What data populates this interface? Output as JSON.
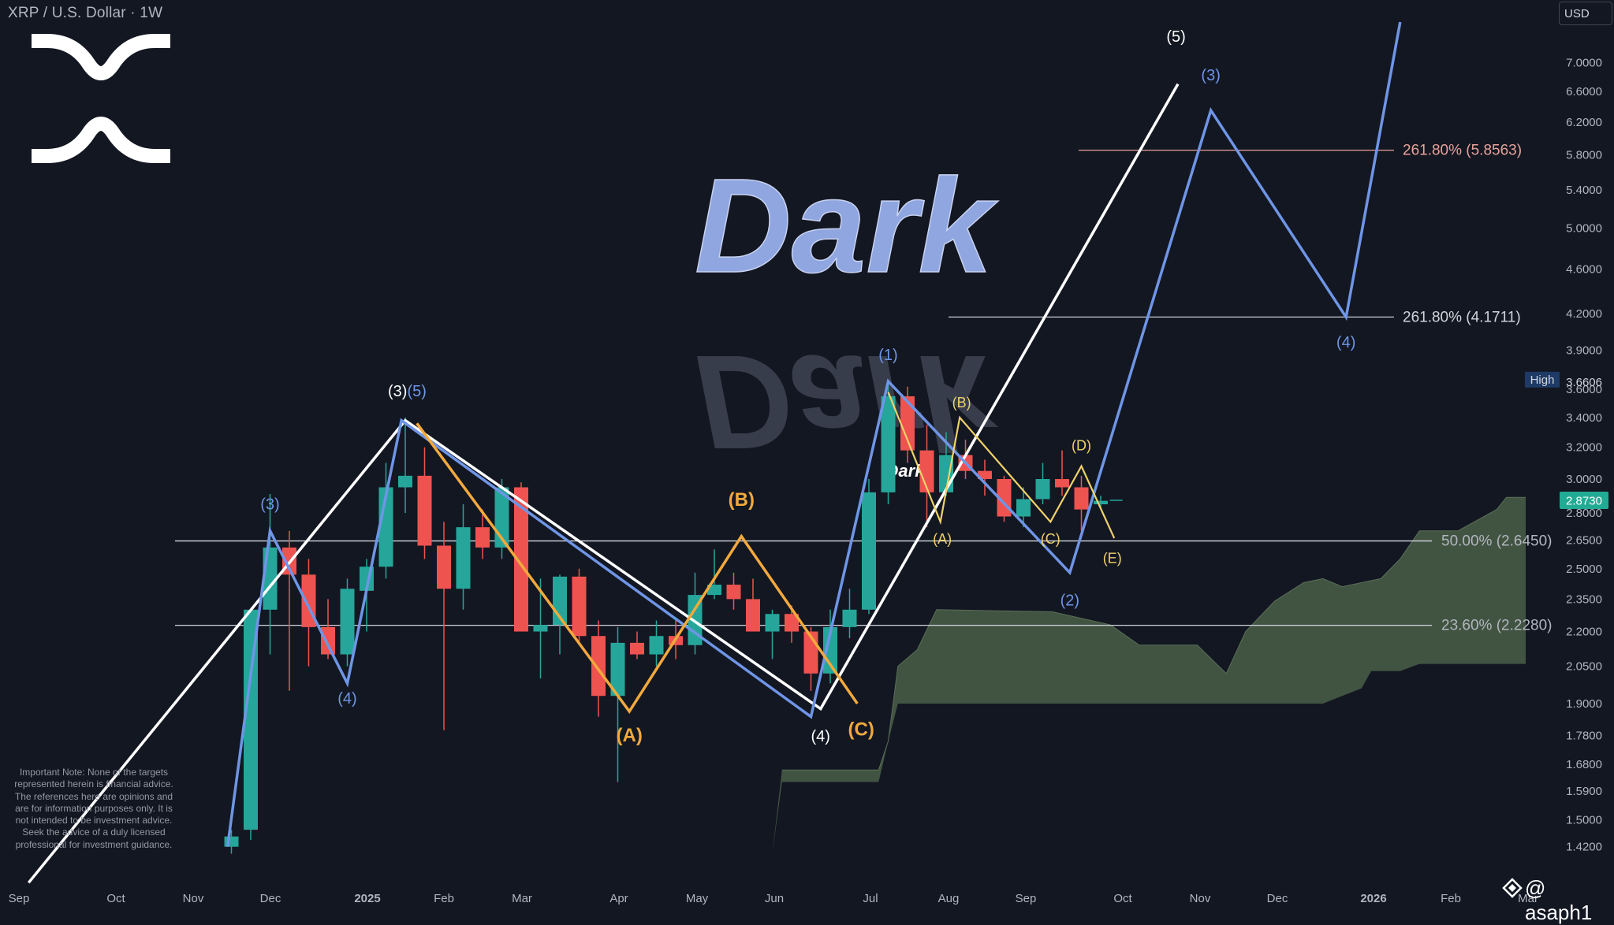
{
  "header": {
    "title": "XRP / U.S. Dollar · 1W",
    "currency": "USD"
  },
  "watermark": {
    "text": "Dark",
    "small_text": "Dark",
    "logo_icon": "xrp-logo-icon"
  },
  "disclaimer": "Important Note: None of the targets represented herein is financial advice. The references here are opinions and are for information purposes only. It is not intended to be investment advice. Seek the advice of a duly licensed professional for investment guidance.",
  "author": {
    "handle": "@ asaph1",
    "icon": "tradingview-diamond-icon"
  },
  "colors": {
    "background": "#131722",
    "bull": "#26a69a",
    "bear": "#ef5350",
    "wave_white": "#ffffff",
    "wave_blue": "#6f95e6",
    "wave_orange": "#f3a93c",
    "wave_yellow": "#f0d26a",
    "cloud": "#4a5f48",
    "fib_orange": "#e8a29a"
  },
  "chart_data": {
    "type": "candlestick",
    "symbol": "XRP / U.S. Dollar",
    "interval": "1W",
    "scale": "log",
    "y_axis_ticks": [
      "1.4200",
      "1.5000",
      "1.5900",
      "1.6800",
      "1.7800",
      "1.9000",
      "2.0500",
      "2.2000",
      "2.3500",
      "2.5000",
      "2.6500",
      "2.8000",
      "3.0000",
      "3.2000",
      "3.4000",
      "3.6000",
      "3.9000",
      "4.2000",
      "4.6000",
      "5.0000",
      "5.4000",
      "5.8000",
      "6.2000",
      "6.6000",
      "7.0000"
    ],
    "x_axis_labels": [
      "Sep",
      "Oct",
      "Nov",
      "Dec",
      "2025",
      "Feb",
      "Mar",
      "Apr",
      "May",
      "Jun",
      "Jul",
      "Aug",
      "Sep",
      "Oct",
      "Nov",
      "Dec",
      "2026",
      "Feb",
      "Mar"
    ],
    "last_price": {
      "label": "2.8730",
      "value": 2.873
    },
    "high_marker": {
      "label": "High",
      "value_label": "3.6606",
      "value": 3.6606
    },
    "fib_levels": [
      {
        "label": "261.80% (5.8563)",
        "value": 5.8563
      },
      {
        "label": "261.80% (4.1711)",
        "value": 4.1711
      },
      {
        "label": "50.00% (2.6450)",
        "value": 2.645
      },
      {
        "label": "23.60% (2.2280)",
        "value": 2.228
      }
    ],
    "candles": [
      {
        "w": 11.0,
        "o": 1.42,
        "h": 1.47,
        "l": 1.4,
        "c": 1.45
      },
      {
        "w": 12.0,
        "o": 1.47,
        "h": 2.3,
        "l": 1.44,
        "c": 2.3
      },
      {
        "w": 13.0,
        "o": 2.3,
        "h": 2.91,
        "l": 2.1,
        "c": 2.61
      },
      {
        "w": 14.0,
        "o": 2.61,
        "h": 2.7,
        "l": 1.95,
        "c": 2.47
      },
      {
        "w": 15.0,
        "o": 2.47,
        "h": 2.55,
        "l": 2.05,
        "c": 2.22
      },
      {
        "w": 16.0,
        "o": 2.22,
        "h": 2.35,
        "l": 2.08,
        "c": 2.1
      },
      {
        "w": 17.0,
        "o": 2.1,
        "h": 2.45,
        "l": 2.05,
        "c": 2.4
      },
      {
        "w": 18.0,
        "o": 2.39,
        "h": 2.55,
        "l": 2.2,
        "c": 2.51
      },
      {
        "w": 19.0,
        "o": 2.51,
        "h": 3.1,
        "l": 2.45,
        "c": 2.95
      },
      {
        "w": 20.0,
        "o": 2.95,
        "h": 3.4,
        "l": 2.8,
        "c": 3.02
      },
      {
        "w": 21.0,
        "o": 3.02,
        "h": 3.2,
        "l": 2.55,
        "c": 2.62
      },
      {
        "w": 22.0,
        "o": 2.62,
        "h": 2.75,
        "l": 1.8,
        "c": 2.4
      },
      {
        "w": 23.0,
        "o": 2.4,
        "h": 2.85,
        "l": 2.3,
        "c": 2.72
      },
      {
        "w": 24.0,
        "o": 2.72,
        "h": 2.82,
        "l": 2.55,
        "c": 2.61
      },
      {
        "w": 25.0,
        "o": 2.61,
        "h": 3.0,
        "l": 2.55,
        "c": 2.95
      },
      {
        "w": 26.0,
        "o": 2.95,
        "h": 2.98,
        "l": 2.2,
        "c": 2.2
      },
      {
        "w": 27.0,
        "o": 2.2,
        "h": 2.45,
        "l": 2.0,
        "c": 2.23
      },
      {
        "w": 28.0,
        "o": 2.23,
        "h": 2.47,
        "l": 2.1,
        "c": 2.46
      },
      {
        "w": 29.0,
        "o": 2.46,
        "h": 2.5,
        "l": 2.15,
        "c": 2.18
      },
      {
        "w": 30.0,
        "o": 2.18,
        "h": 2.25,
        "l": 1.85,
        "c": 1.93
      },
      {
        "w": 31.0,
        "o": 1.93,
        "h": 2.22,
        "l": 1.62,
        "c": 2.15
      },
      {
        "w": 32.0,
        "o": 2.15,
        "h": 2.2,
        "l": 2.08,
        "c": 2.1
      },
      {
        "w": 33.0,
        "o": 2.1,
        "h": 2.25,
        "l": 2.05,
        "c": 2.18
      },
      {
        "w": 34.0,
        "o": 2.18,
        "h": 2.25,
        "l": 2.08,
        "c": 2.14
      },
      {
        "w": 35.0,
        "o": 2.14,
        "h": 2.48,
        "l": 2.1,
        "c": 2.37
      },
      {
        "w": 36.0,
        "o": 2.37,
        "h": 2.6,
        "l": 2.35,
        "c": 2.42
      },
      {
        "w": 37.0,
        "o": 2.42,
        "h": 2.48,
        "l": 2.3,
        "c": 2.35
      },
      {
        "w": 38.0,
        "o": 2.35,
        "h": 2.45,
        "l": 2.2,
        "c": 2.2
      },
      {
        "w": 39.0,
        "o": 2.2,
        "h": 2.3,
        "l": 2.08,
        "c": 2.28
      },
      {
        "w": 40.0,
        "o": 2.28,
        "h": 2.32,
        "l": 2.15,
        "c": 2.2
      },
      {
        "w": 41.0,
        "o": 2.2,
        "h": 2.22,
        "l": 1.95,
        "c": 2.02
      },
      {
        "w": 42.0,
        "o": 2.02,
        "h": 2.3,
        "l": 1.98,
        "c": 2.22
      },
      {
        "w": 43.0,
        "o": 2.22,
        "h": 2.4,
        "l": 2.17,
        "c": 2.3
      },
      {
        "w": 44.0,
        "o": 2.3,
        "h": 3.0,
        "l": 2.28,
        "c": 2.92
      },
      {
        "w": 45.0,
        "o": 2.92,
        "h": 3.66,
        "l": 2.85,
        "c": 3.55
      },
      {
        "w": 46.0,
        "o": 3.55,
        "h": 3.62,
        "l": 3.1,
        "c": 3.18
      },
      {
        "w": 47.0,
        "o": 3.18,
        "h": 3.35,
        "l": 2.72,
        "c": 2.92
      },
      {
        "w": 48.0,
        "o": 2.92,
        "h": 3.3,
        "l": 2.9,
        "c": 3.15
      },
      {
        "w": 49.0,
        "o": 3.15,
        "h": 3.25,
        "l": 3.0,
        "c": 3.05
      },
      {
        "w": 50.0,
        "o": 3.05,
        "h": 3.12,
        "l": 2.9,
        "c": 3.0
      },
      {
        "w": 51.0,
        "o": 3.0,
        "h": 3.02,
        "l": 2.75,
        "c": 2.78
      },
      {
        "w": 52.0,
        "o": 2.78,
        "h": 2.95,
        "l": 2.72,
        "c": 2.88
      },
      {
        "w": 53.0,
        "o": 2.88,
        "h": 3.1,
        "l": 2.85,
        "c": 3.0
      },
      {
        "w": 54.0,
        "o": 3.0,
        "h": 3.18,
        "l": 2.9,
        "c": 2.95
      },
      {
        "w": 55.0,
        "o": 2.95,
        "h": 3.02,
        "l": 2.7,
        "c": 2.82
      },
      {
        "w": 56.0,
        "o": 2.85,
        "h": 2.9,
        "l": 2.83,
        "c": 2.87
      }
    ],
    "waves": [
      {
        "name": "white",
        "color_key": "wave_white",
        "points": [
          [
            0.5,
            1.32
          ],
          [
            20.0,
            3.38
          ],
          [
            41.5,
            1.88
          ],
          [
            60.0,
            6.7
          ]
        ]
      },
      {
        "name": "blue-a",
        "color_key": "wave_blue",
        "points": [
          [
            10.8,
            1.42
          ],
          [
            13.0,
            2.7
          ],
          [
            17.0,
            1.98
          ],
          [
            19.8,
            3.38
          ],
          [
            41.0,
            1.85
          ],
          [
            45.0,
            3.66
          ],
          [
            54.4,
            2.48
          ],
          [
            61.7,
            6.35
          ],
          [
            68.7,
            4.17
          ],
          [
            71.5,
            7.6
          ]
        ]
      },
      {
        "name": "orange",
        "color_key": "wave_orange",
        "points": [
          [
            20.6,
            3.36
          ],
          [
            31.6,
            1.87
          ],
          [
            37.4,
            2.67
          ],
          [
            43.4,
            1.9
          ]
        ]
      },
      {
        "name": "yellow",
        "color_key": "wave_yellow",
        "points": [
          [
            45.0,
            3.58
          ],
          [
            47.7,
            2.75
          ],
          [
            48.7,
            3.4
          ],
          [
            53.4,
            2.75
          ],
          [
            55.0,
            3.08
          ],
          [
            56.7,
            2.66
          ]
        ]
      }
    ],
    "wave_labels": [
      {
        "text": "(3)",
        "w": 13.0,
        "v": 2.82,
        "color_key": "wave_blue",
        "size": 20
      },
      {
        "text": "(4)",
        "w": 17.0,
        "v": 1.9,
        "color_key": "wave_blue",
        "size": 20
      },
      {
        "text": "(3)",
        "w": 19.6,
        "v": 3.55,
        "color_key": "wave_white",
        "size": 20
      },
      {
        "text": "(5)",
        "w": 20.6,
        "v": 3.55,
        "color_key": "wave_blue",
        "size": 20
      },
      {
        "text": "(A)",
        "w": 31.6,
        "v": 1.76,
        "color_key": "wave_orange",
        "size": 24,
        "bold": true
      },
      {
        "text": "(B)",
        "w": 37.4,
        "v": 2.84,
        "color_key": "wave_orange",
        "size": 24,
        "bold": true
      },
      {
        "text": "(4)",
        "w": 41.5,
        "v": 1.76,
        "color_key": "wave_white",
        "size": 20
      },
      {
        "text": "(C)",
        "w": 43.6,
        "v": 1.78,
        "color_key": "wave_orange",
        "size": 24,
        "bold": true
      },
      {
        "text": "(1)",
        "w": 45.0,
        "v": 3.82,
        "color_key": "wave_blue",
        "size": 20
      },
      {
        "text": "(B)",
        "w": 48.8,
        "v": 3.47,
        "color_key": "wave_yellow",
        "size": 18
      },
      {
        "text": "(A)",
        "w": 47.8,
        "v": 2.63,
        "color_key": "wave_yellow",
        "size": 18
      },
      {
        "text": "(D)",
        "w": 55.0,
        "v": 3.18,
        "color_key": "wave_yellow",
        "size": 18
      },
      {
        "text": "(C)",
        "w": 53.4,
        "v": 2.63,
        "color_key": "wave_yellow",
        "size": 18
      },
      {
        "text": "(E)",
        "w": 56.6,
        "v": 2.53,
        "color_key": "wave_yellow",
        "size": 18
      },
      {
        "text": "(2)",
        "w": 54.4,
        "v": 2.32,
        "color_key": "wave_blue",
        "size": 20
      },
      {
        "text": "(5)",
        "w": 59.9,
        "v": 7.3,
        "color_key": "wave_white",
        "size": 20
      },
      {
        "text": "(3)",
        "w": 61.7,
        "v": 6.75,
        "color_key": "wave_blue",
        "size": 20
      },
      {
        "text": "(4)",
        "w": 68.7,
        "v": 3.92,
        "color_key": "wave_blue",
        "size": 20
      }
    ],
    "ichimoku_cloud": {
      "upper": [
        [
          39.5,
          1.66
        ],
        [
          44.5,
          1.66
        ],
        [
          45.0,
          1.76
        ],
        [
          45.5,
          2.05
        ],
        [
          46.5,
          2.12
        ],
        [
          47.5,
          2.3
        ],
        [
          53.5,
          2.29
        ],
        [
          56.5,
          2.23
        ],
        [
          58.0,
          2.14
        ],
        [
          61.0,
          2.14
        ],
        [
          62.5,
          2.02
        ],
        [
          63.5,
          2.2
        ],
        [
          65.0,
          2.34
        ],
        [
          66.5,
          2.43
        ],
        [
          67.5,
          2.45
        ],
        [
          68.5,
          2.41
        ],
        [
          70.5,
          2.45
        ],
        [
          71.5,
          2.55
        ],
        [
          72.5,
          2.7
        ],
        [
          74.5,
          2.7
        ],
        [
          76.5,
          2.82
        ],
        [
          77.0,
          2.89
        ],
        [
          78.0,
          2.89
        ]
      ],
      "lower": [
        [
          39.0,
          1.4
        ],
        [
          39.5,
          1.62
        ],
        [
          44.5,
          1.62
        ],
        [
          45.0,
          1.76
        ],
        [
          45.5,
          1.9
        ],
        [
          67.5,
          1.9
        ],
        [
          68.5,
          1.93
        ],
        [
          69.5,
          1.96
        ],
        [
          70.0,
          2.03
        ],
        [
          71.5,
          2.03
        ],
        [
          72.5,
          2.06
        ],
        [
          78.0,
          2.06
        ]
      ]
    }
  }
}
